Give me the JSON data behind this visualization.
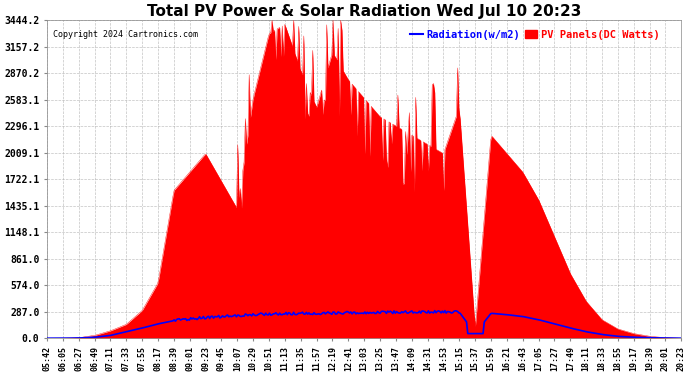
{
  "title": "Total PV Power & Solar Radiation Wed Jul 10 20:23",
  "copyright": "Copyright 2024 Cartronics.com",
  "legend_radiation": "Radiation(w/m2)",
  "legend_pv": "PV Panels(DC Watts)",
  "ymin": 0.0,
  "ymax": 3444.2,
  "yticks": [
    0.0,
    287.0,
    574.0,
    861.0,
    1148.1,
    1435.1,
    1722.1,
    2009.1,
    2296.1,
    2583.1,
    2870.2,
    3157.2,
    3444.2
  ],
  "background_color": "#ffffff",
  "grid_color": "#aaaaaa",
  "pv_color": "#ff0000",
  "radiation_color": "#0000ff",
  "title_fontsize": 11,
  "x_labels": [
    "05:42",
    "06:05",
    "06:27",
    "06:49",
    "07:11",
    "07:33",
    "07:55",
    "08:17",
    "08:39",
    "09:01",
    "09:23",
    "09:45",
    "10:07",
    "10:29",
    "10:51",
    "11:13",
    "11:35",
    "11:57",
    "12:19",
    "12:41",
    "13:03",
    "13:25",
    "13:47",
    "14:09",
    "14:31",
    "14:53",
    "15:15",
    "15:37",
    "15:59",
    "16:21",
    "16:43",
    "17:05",
    "17:27",
    "17:49",
    "18:11",
    "18:33",
    "18:55",
    "19:17",
    "19:39",
    "20:01",
    "20:23"
  ],
  "figsize": [
    6.9,
    3.75
  ],
  "dpi": 100
}
